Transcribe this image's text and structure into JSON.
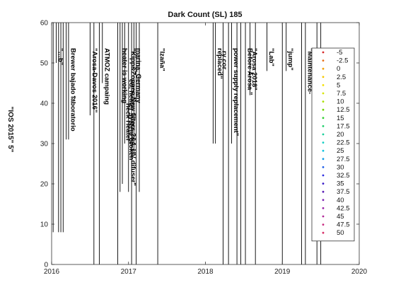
{
  "chart_data": {
    "type": "line",
    "title": "Dark Count (SL) 185",
    "ylabel": "\"IOS 2015\" 5\"",
    "xlabel": "",
    "xlim": [
      2016,
      2020
    ],
    "ylim": [
      0,
      60
    ],
    "xticks": [
      2016,
      2017,
      2018,
      2019,
      2020
    ],
    "xtick_labels": [
      "2016",
      "2017",
      "2018",
      "2019",
      "2020"
    ],
    "yticks": [
      0,
      10,
      20,
      30,
      40,
      50,
      60
    ],
    "ytick_labels": [
      "0",
      "10",
      "20",
      "30",
      "40",
      "50",
      "60"
    ],
    "grid": false,
    "legend_position": "right",
    "legend": [
      {
        "label": "-5",
        "color": "#d62728"
      },
      {
        "label": "-2.5",
        "color": "#e8701a"
      },
      {
        "label": "0",
        "color": "#f2a20a"
      },
      {
        "label": "2.5",
        "color": "#f6c800"
      },
      {
        "label": "5",
        "color": "#f4e000"
      },
      {
        "label": "7.5",
        "color": "#d6e600"
      },
      {
        "label": "10",
        "color": "#a8e000"
      },
      {
        "label": "12.5",
        "color": "#6fd400"
      },
      {
        "label": "15",
        "color": "#2fcf2f"
      },
      {
        "label": "17.5",
        "color": "#1ecf6a"
      },
      {
        "label": "20",
        "color": "#18cf9a"
      },
      {
        "label": "22.5",
        "color": "#15cfc4"
      },
      {
        "label": "25",
        "color": "#12c4df"
      },
      {
        "label": "27.5",
        "color": "#109ce6"
      },
      {
        "label": "30",
        "color": "#1f5fe8"
      },
      {
        "label": "32.5",
        "color": "#2b2be0"
      },
      {
        "label": "35",
        "color": "#3a1cc8"
      },
      {
        "label": "37.5",
        "color": "#5a1fb5"
      },
      {
        "label": "40",
        "color": "#7a22b0"
      },
      {
        "label": "42.5",
        "color": "#9a24a8"
      },
      {
        "label": "45",
        "color": "#b22698"
      },
      {
        "label": "47.5",
        "color": "#c82a80"
      },
      {
        "label": "50",
        "color": "#d83068"
      }
    ],
    "events": [
      {
        "x": 2016.02,
        "label": "",
        "bottom": 8
      },
      {
        "x": 2016.06,
        "label": "\"…b\"",
        "bottom": 50
      },
      {
        "x": 2016.09,
        "label": "",
        "bottom": 8
      },
      {
        "x": 2016.12,
        "label": "",
        "bottom": 8
      },
      {
        "x": 2016.15,
        "label": "",
        "bottom": 8
      },
      {
        "x": 2016.19,
        "label": "",
        "bottom": 31
      },
      {
        "x": 2016.22,
        "label": "Brewer bajado laboratorio",
        "bottom": 31
      },
      {
        "x": 2016.5,
        "label": "\"Arosa-Davos 2016\"",
        "bottom": 37
      },
      {
        "x": 2016.55,
        "label": "",
        "bottom": 0
      },
      {
        "x": 2016.62,
        "label": "",
        "bottom": 0
      },
      {
        "x": 2016.66,
        "label": "ATMOZ campaing",
        "bottom": 45
      },
      {
        "x": 2016.86,
        "label": "",
        "bottom": 0
      },
      {
        "x": 2016.89,
        "label": "heater is working",
        "bottom": 18
      },
      {
        "x": 2016.92,
        "label": "",
        "bottom": 20
      },
      {
        "x": 2016.95,
        "label": "",
        "bottom": 30
      },
      {
        "x": 2017.0,
        "label": "\"Kipp&Zonnen.New filters 3&4. UV difuser\"",
        "bottom": 18
      },
      {
        "x": 2017.04,
        "label": "",
        "bottom": 0
      },
      {
        "x": 2017.07,
        "label": "marina, Germany",
        "bottom": 27
      },
      {
        "x": 2017.1,
        "label": "",
        "bottom": 0
      },
      {
        "x": 2017.14,
        "label": "",
        "bottom": 18
      },
      {
        "x": 2017.38,
        "label": "\"Izaña\"",
        "bottom": 0
      },
      {
        "x": 2018.1,
        "label": "",
        "bottom": 30
      },
      {
        "x": 2018.13,
        "label": "replaced\"",
        "bottom": 30
      },
      {
        "x": 2018.23,
        "label": "",
        "bottom": 0
      },
      {
        "x": 2018.3,
        "label": "",
        "bottom": 0
      },
      {
        "x": 2018.34,
        "label": "power supply replacement\"",
        "bottom": 30
      },
      {
        "x": 2018.41,
        "label": "",
        "bottom": 0
      },
      {
        "x": 2018.46,
        "label": "",
        "bottom": 0
      },
      {
        "x": 2018.52,
        "label": "Before Arosa \"",
        "bottom": 0
      },
      {
        "x": 2018.58,
        "label": "\"Arosa  2018\"",
        "bottom": 42
      },
      {
        "x": 2018.65,
        "label": "",
        "bottom": 0
      },
      {
        "x": 2018.8,
        "label": "\"Lab\"",
        "bottom": 48
      },
      {
        "x": 2019.0,
        "label": "",
        "bottom": 0
      },
      {
        "x": 2019.05,
        "label": "\"jump\"",
        "bottom": 48
      },
      {
        "x": 2019.25,
        "label": "",
        "bottom": 0
      },
      {
        "x": 2019.3,
        "label": "\"Maintenance-",
        "bottom": 0
      },
      {
        "x": 2019.45,
        "label": "",
        "bottom": 0
      },
      {
        "x": 2019.5,
        "label": "",
        "bottom": 0
      }
    ]
  },
  "annotations_extra": [
    {
      "x": 2016.26,
      "label": "…",
      "text_top": 42
    },
    {
      "x": 2016.94,
      "label": "heck Heater\"",
      "text_top": 40
    },
    {
      "x": 2016.98,
      "label": "ed, heater system broken",
      "text_top": 46
    },
    {
      "x": 2018.19,
      "label": "ry cor ., ",
      "text_top": 53
    }
  ]
}
